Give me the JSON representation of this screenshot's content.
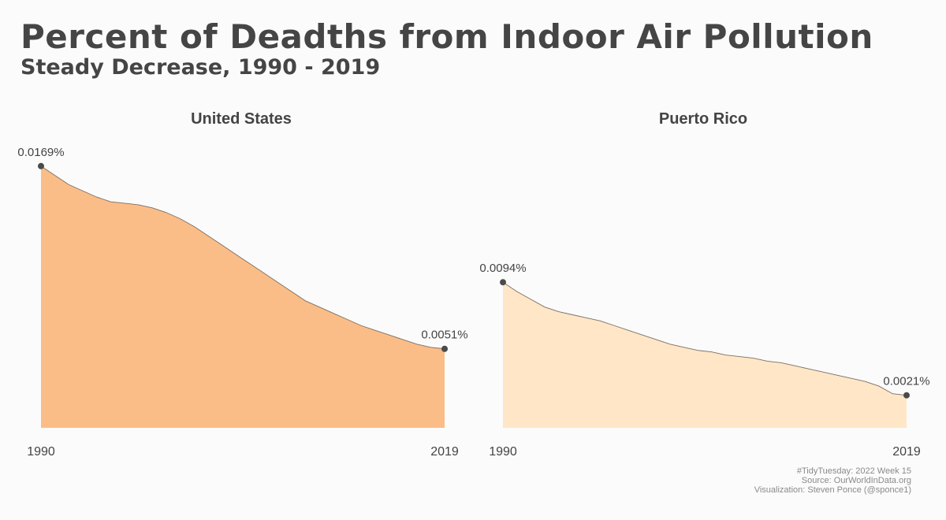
{
  "title": "Percent of Deadths from Indoor Air Pollution",
  "subtitle": "Steady Decrease, 1990 - 2019",
  "caption": {
    "line1": "#TidyTuesday: 2022 Week 15",
    "line2": "Source: OurWorldInData.org",
    "line3": "Visualization: Steven Ponce (@sponce1)"
  },
  "chart_data": [
    {
      "type": "area",
      "title": "United States",
      "x": [
        1990,
        1991,
        1992,
        1993,
        1994,
        1995,
        1996,
        1997,
        1998,
        1999,
        2000,
        2001,
        2002,
        2003,
        2004,
        2005,
        2006,
        2007,
        2008,
        2009,
        2010,
        2011,
        2012,
        2013,
        2014,
        2015,
        2016,
        2017,
        2018,
        2019
      ],
      "series": [
        {
          "values": [
            0.0169,
            0.0163,
            0.0157,
            0.0153,
            0.0149,
            0.0146,
            0.0145,
            0.0144,
            0.0142,
            0.0139,
            0.0135,
            0.013,
            0.0124,
            0.0118,
            0.0112,
            0.0106,
            0.01,
            0.0094,
            0.0088,
            0.0082,
            0.0078,
            0.0074,
            0.007,
            0.0066,
            0.0063,
            0.006,
            0.0057,
            0.0054,
            0.0052,
            0.0051
          ],
          "color": "#fbbd87"
        }
      ],
      "start_label": "0.0169%",
      "end_label": "0.0051%",
      "xticks": [
        "1990",
        "2019"
      ],
      "ylim": [
        0,
        0.0175
      ],
      "grid": false
    },
    {
      "type": "area",
      "title": "Puerto Rico",
      "x": [
        1990,
        1991,
        1992,
        1993,
        1994,
        1995,
        1996,
        1997,
        1998,
        1999,
        2000,
        2001,
        2002,
        2003,
        2004,
        2005,
        2006,
        2007,
        2008,
        2009,
        2010,
        2011,
        2012,
        2013,
        2014,
        2015,
        2016,
        2017,
        2018,
        2019
      ],
      "series": [
        {
          "values": [
            0.0094,
            0.0088,
            0.0083,
            0.0078,
            0.0075,
            0.0073,
            0.0071,
            0.0069,
            0.0066,
            0.0063,
            0.006,
            0.0057,
            0.0054,
            0.0052,
            0.005,
            0.0049,
            0.0047,
            0.0046,
            0.0045,
            0.0043,
            0.0042,
            0.004,
            0.0038,
            0.0036,
            0.0034,
            0.0032,
            0.003,
            0.0027,
            0.0022,
            0.0021
          ],
          "color": "#fee6c6"
        }
      ],
      "start_label": "0.0094%",
      "end_label": "0.0021%",
      "xticks": [
        "1990",
        "2019"
      ],
      "ylim": [
        0,
        0.0175
      ],
      "grid": false
    }
  ]
}
